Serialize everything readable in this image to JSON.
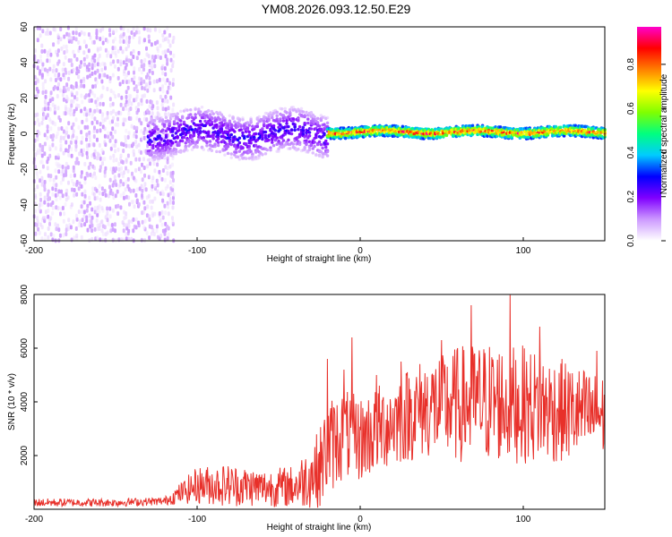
{
  "title": "YM08.2026.093.12.50.E29",
  "colors": {
    "snr_line": "#e8302a",
    "axis": "#000000",
    "background": "#ffffff"
  },
  "chart_data": [
    {
      "type": "heatmap",
      "name": "spectrogram",
      "xlabel": "Height of straight line (km)",
      "ylabel": "Frequency (Hz)",
      "xlim": [
        -200,
        150
      ],
      "ylim": [
        -60,
        60
      ],
      "xticks": [
        -200,
        -100,
        0,
        100
      ],
      "xtick_labels": [
        "-200",
        "-100",
        "0",
        "100"
      ],
      "yticks": [
        -60,
        -40,
        -20,
        0,
        20,
        40,
        60
      ],
      "ytick_labels": [
        "-60",
        "-40",
        "-20",
        "0",
        "20",
        "40",
        "60"
      ],
      "colorbar": {
        "label": "Normalized spectral amplitude",
        "range": [
          0,
          0.97
        ],
        "ticks": [
          0.0,
          0.2,
          0.4,
          0.6,
          0.8
        ],
        "tick_labels": [
          "0.0",
          "0.2",
          "0.4",
          "0.6",
          "0.8"
        ],
        "colormap": [
          "#ffffff",
          "#cc99ff",
          "#8000ff",
          "#0000ff",
          "#00ccff",
          "#00ff80",
          "#80ff00",
          "#ffff00",
          "#ff8000",
          "#ff0000",
          "#ff00cc"
        ]
      },
      "regions": [
        {
          "x_range": [
            -200,
            -115
          ],
          "f_range": [
            -60,
            60
          ],
          "amplitude": [
            0.02,
            0.1
          ],
          "description": "broadband noise"
        },
        {
          "x_range": [
            -130,
            -20
          ],
          "f_center": 0,
          "f_halfwidth": 12,
          "amplitude": [
            0.05,
            0.3
          ]
        },
        {
          "x_range": [
            -20,
            150
          ],
          "f_center": 1,
          "f_halfwidth": 3,
          "amplitude": [
            0.3,
            0.97
          ]
        }
      ]
    },
    {
      "type": "line",
      "name": "snr",
      "xlabel": "Height of straight line (km)",
      "ylabel": "SNR (10 * v/v)",
      "xlim": [
        -200,
        150
      ],
      "ylim": [
        0,
        8000
      ],
      "xticks": [
        -200,
        -100,
        0,
        100
      ],
      "xtick_labels": [
        "-200",
        "-100",
        "0",
        "100"
      ],
      "yticks": [
        2000,
        4000,
        6000,
        8000
      ],
      "ytick_labels": [
        "2000",
        "4000",
        "6000",
        "8000"
      ],
      "envelope": {
        "x": [
          -200,
          -150,
          -120,
          -110,
          -100,
          -80,
          -60,
          -40,
          -25,
          -20,
          -10,
          0,
          20,
          40,
          60,
          80,
          100,
          120,
          140,
          150
        ],
        "mean": [
          250,
          250,
          300,
          600,
          900,
          900,
          800,
          850,
          1500,
          2300,
          2800,
          2600,
          3300,
          3800,
          3900,
          4000,
          3900,
          3700,
          3500,
          3500
        ],
        "spread": [
          150,
          150,
          150,
          400,
          700,
          800,
          700,
          800,
          1500,
          1800,
          1700,
          1600,
          1700,
          1900,
          2200,
          2300,
          2200,
          2000,
          1700,
          1500
        ],
        "peaks": [
          [
            -20,
            5600
          ],
          [
            -10,
            5200
          ],
          [
            -5,
            6400
          ],
          [
            10,
            5000
          ],
          [
            25,
            5500
          ],
          [
            50,
            6300
          ],
          [
            68,
            7600
          ],
          [
            92,
            8000
          ],
          [
            110,
            6800
          ],
          [
            145,
            5900
          ]
        ]
      }
    }
  ]
}
